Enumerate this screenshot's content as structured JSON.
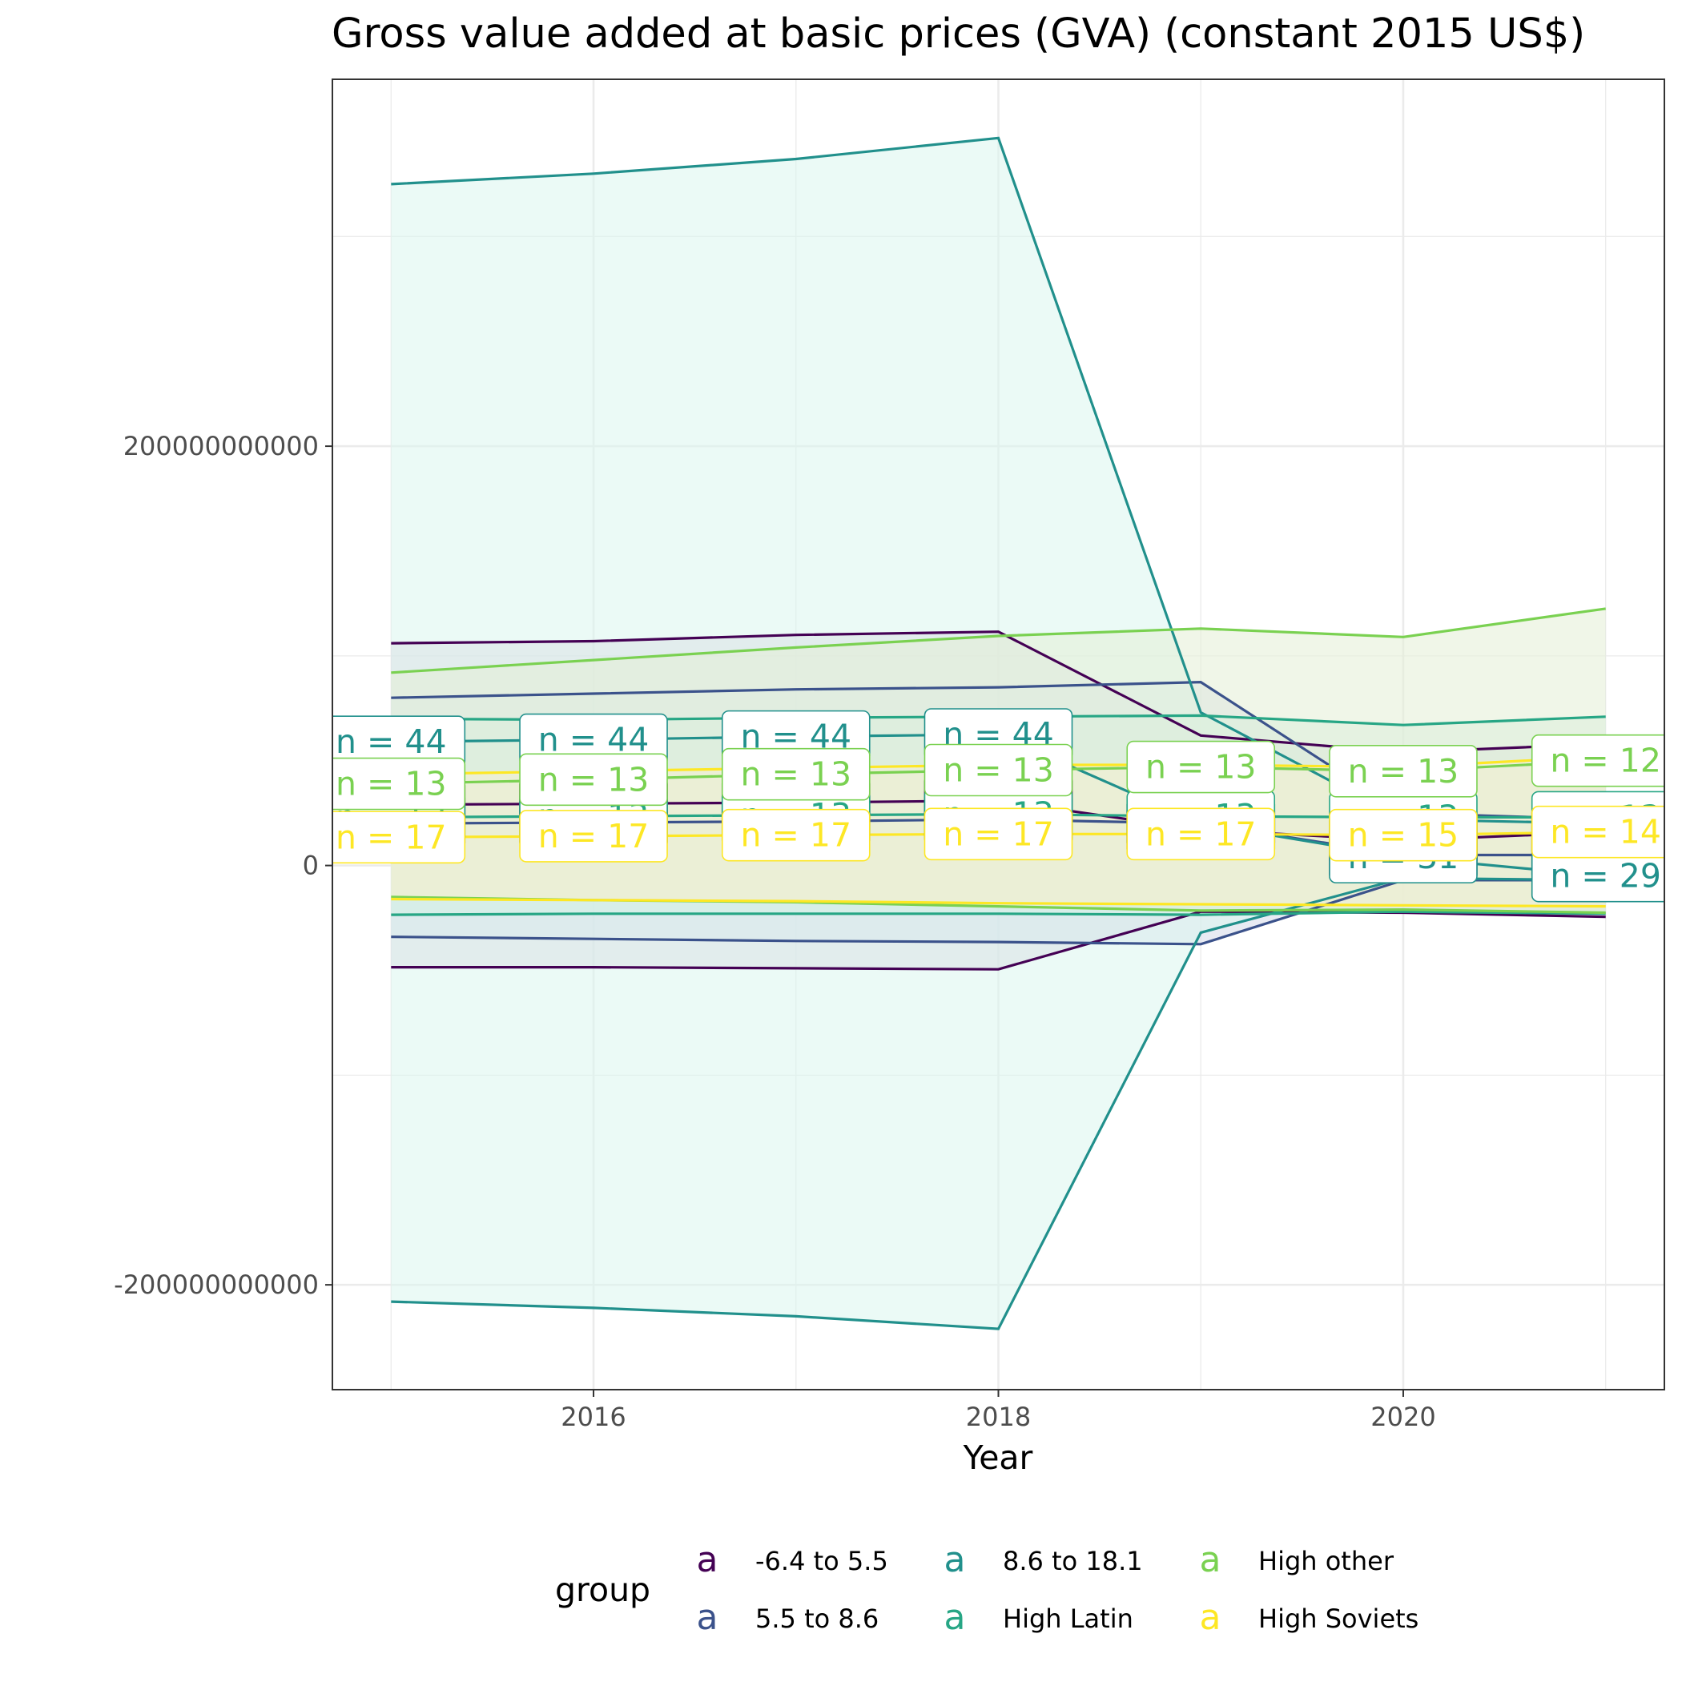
{
  "chart_data": {
    "type": "line",
    "title": "Gross value added at basic prices (GVA) (constant 2015 US$)",
    "xlabel": "Year",
    "ylabel": "",
    "x": [
      2015,
      2016,
      2017,
      2018,
      2019,
      2020,
      2021
    ],
    "xlim": [
      2014.71,
      2021.29
    ],
    "ylim": [
      -250000000000,
      375000000000
    ],
    "x_ticks": [
      2016,
      2018,
      2020
    ],
    "x_tick_labels": [
      "2016",
      "2018",
      "2020"
    ],
    "y_ticks": [
      -200000000000,
      0,
      200000000000
    ],
    "y_tick_labels": [
      "-200000000000",
      "0",
      "200000000000"
    ],
    "grid": true,
    "legend_title": "group",
    "legend_position": "bottom",
    "legend_key_glyph": "a",
    "series": [
      {
        "name": "-6.4 to 5.5",
        "color": "#440154",
        "fill": "#d8cbdc",
        "mean": [
          29000000000,
          29500000000,
          30000000000,
          31000000000,
          17000000000,
          12000000000,
          16000000000
        ],
        "upper": [
          106000000000,
          107000000000,
          110000000000,
          111500000000,
          62000000000,
          54000000000,
          58000000000
        ],
        "lower": [
          -48500000000,
          -48500000000,
          -49000000000,
          -49500000000,
          -22000000000,
          -22500000000,
          -24500000000
        ],
        "n_labels": [
          "n = 11",
          "n = 11",
          "n = 11",
          "n = 11",
          "n = 11",
          "n = 11",
          "n = 11"
        ]
      },
      {
        "name": "5.5 to 8.6",
        "color": "#3b528b",
        "fill": "#d6dbea",
        "mean": [
          20000000000,
          20500000000,
          21000000000,
          22000000000,
          20000000000,
          5000000000,
          5000000000
        ],
        "upper": [
          80000000000,
          82000000000,
          84000000000,
          85000000000,
          87500000000,
          25000000000,
          22000000000
        ],
        "lower": [
          -34000000000,
          -35000000000,
          -36000000000,
          -36500000000,
          -37500000000,
          -7000000000,
          -7000000000
        ],
        "n_labels": [
          "n = 15",
          "n = 15",
          "n = 15",
          "n = 15",
          "n = 15",
          "n = 15",
          "n = 15"
        ]
      },
      {
        "name": "8.6 to 18.1",
        "color": "#21908c",
        "fill": "#daf5ee",
        "mean": [
          59000000000,
          60000000000,
          61500000000,
          62500000000,
          20000000000,
          4000000000,
          -5000000000
        ],
        "upper": [
          325000000000,
          330000000000,
          337000000000,
          347000000000,
          73000000000,
          22000000000,
          20000000000
        ],
        "lower": [
          -208000000000,
          -211000000000,
          -215000000000,
          -221000000000,
          -32000000000,
          -6000000000,
          -7000000000
        ],
        "n_labels": [
          "n = 44",
          "n = 44",
          "n = 44",
          "n = 44",
          "n = 44",
          "n = 31",
          "n = 29"
        ]
      },
      {
        "name": "High Latin",
        "color": "#27a685",
        "fill": "#d2f1e4",
        "mean": [
          23000000000,
          23500000000,
          24000000000,
          24500000000,
          23500000000,
          23000000000,
          23000000000
        ],
        "upper": [
          70000000000,
          69500000000,
          70500000000,
          71000000000,
          71500000000,
          67000000000,
          71000000000
        ],
        "lower": [
          -23500000000,
          -23000000000,
          -23000000000,
          -23000000000,
          -23500000000,
          -22000000000,
          -23000000000
        ],
        "n_labels": [
          "n = 13",
          "n = 13",
          "n = 13",
          "n = 13",
          "n = 13",
          "n = 13",
          "n = 13"
        ]
      },
      {
        "name": "High other",
        "color": "#7ad151",
        "fill": "#e3eed6",
        "mean": [
          39000000000,
          41000000000,
          43500000000,
          45500000000,
          47000000000,
          45000000000,
          50000000000
        ],
        "upper": [
          92000000000,
          98000000000,
          104000000000,
          109500000000,
          113000000000,
          109000000000,
          122500000000
        ],
        "lower": [
          -15000000000,
          -16500000000,
          -17500000000,
          -19500000000,
          -21500000000,
          -21000000000,
          -22500000000
        ],
        "n_labels": [
          "n = 13",
          "n = 13",
          "n = 13",
          "n = 13",
          "n = 13",
          "n = 13",
          "n = 12"
        ]
      },
      {
        "name": "High Soviets",
        "color": "#fde725",
        "fill": "#f5f1cf",
        "mean": [
          13500000000,
          14000000000,
          14500000000,
          15000000000,
          15000000000,
          14500000000,
          16000000000
        ],
        "upper": [
          43500000000,
          45000000000,
          46500000000,
          48000000000,
          48000000000,
          47000000000,
          52000000000
        ],
        "lower": [
          -16000000000,
          -16500000000,
          -17000000000,
          -18000000000,
          -18500000000,
          -19000000000,
          -19500000000
        ],
        "n_labels": [
          "n = 17",
          "n = 17",
          "n = 17",
          "n = 17",
          "n = 17",
          "n = 15",
          "n = 14"
        ]
      }
    ]
  }
}
